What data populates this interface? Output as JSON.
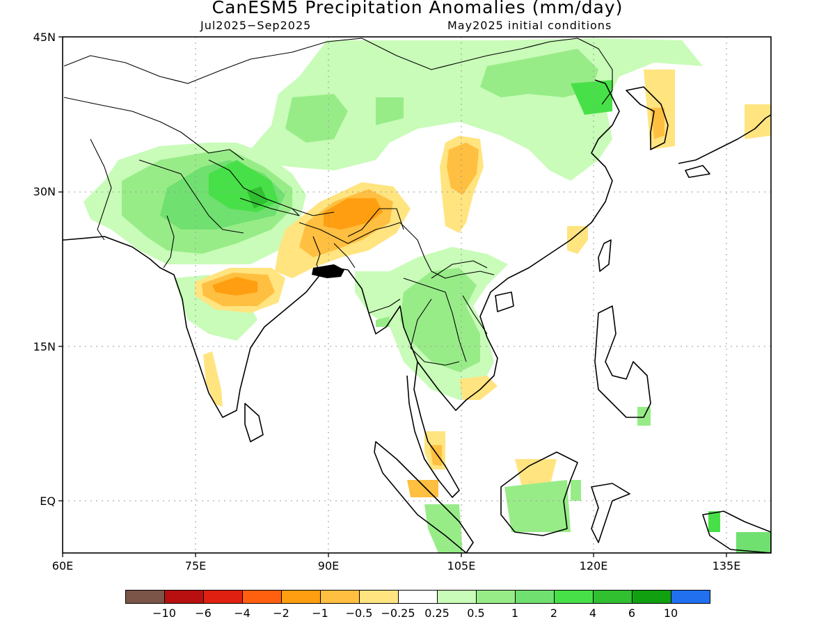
{
  "title": "CanESM5 Precipitation Anomalies (mm/day)",
  "subtitle_period": "Jul2025−Sep2025",
  "subtitle_init": "May2025 initial conditions",
  "map": {
    "projection": "lat-lon",
    "lon_range": [
      60,
      140
    ],
    "lat_range": [
      -5,
      45
    ],
    "grid": "dotted",
    "lat_labels": [
      "45N",
      "30N",
      "15N",
      "EQ"
    ],
    "lon_labels": [
      "60E",
      "75E",
      "90E",
      "105E",
      "120E",
      "135E"
    ]
  },
  "colorbar": {
    "colors": [
      "#7a5548",
      "#b81010",
      "#e02010",
      "#ff6010",
      "#ff9e10",
      "#ffbf40",
      "#ffe480",
      "#ffffff",
      "#c8fcb8",
      "#98ec88",
      "#70e070",
      "#48e048",
      "#30c030",
      "#10a010",
      "#2070f0"
    ],
    "labels": [
      "−10",
      "−6",
      "−4",
      "−2",
      "−1",
      "−0.5",
      "−0.25",
      "0.25",
      "0.5",
      "1",
      "2",
      "4",
      "6",
      "10"
    ]
  }
}
